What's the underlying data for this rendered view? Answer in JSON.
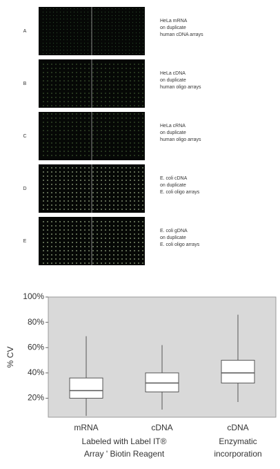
{
  "panels": [
    {
      "letter": "A",
      "lines": [
        "HeLa mRNA",
        "on duplicate",
        "human cDNA arrays"
      ]
    },
    {
      "letter": "B",
      "lines": [
        "HeLa cDNA",
        "on duplicate",
        "human oligo arrays"
      ]
    },
    {
      "letter": "C",
      "lines": [
        "HeLa cRNA",
        "on duplicate",
        "human oligo arrays"
      ]
    },
    {
      "letter": "D",
      "lines": [
        "E. coli cDNA",
        "on duplicate",
        "E. coli oligo arrays"
      ]
    },
    {
      "letter": "E",
      "lines": [
        "E. coli gDNA",
        "on duplicate",
        "E. coli oligo arrays"
      ]
    }
  ],
  "chart_data": {
    "type": "box",
    "y_label": "% CV",
    "categories": [
      "mRNA",
      "cDNA",
      "cDNA"
    ],
    "groups": [
      {
        "lines": [
          "Labeled with Label IT®",
          "Array ' Biotin Reagent"
        ]
      },
      {
        "lines": [
          "Enzymatic",
          "incorporation"
        ]
      }
    ],
    "min": [
      6,
      11,
      17
    ],
    "q1": [
      20,
      25,
      32
    ],
    "median": [
      26,
      32,
      40
    ],
    "q3": [
      36,
      40,
      50
    ],
    "max": [
      69,
      62,
      86
    ],
    "ylim": [
      5,
      100
    ],
    "yticks": [
      {
        "value": 20,
        "label": "20%"
      },
      {
        "value": 40,
        "label": "40%"
      },
      {
        "value": 60,
        "label": "60%"
      },
      {
        "value": 80,
        "label": "80%"
      },
      {
        "value": 100,
        "label": "100%"
      }
    ],
    "plot_background": "#d9d9d9",
    "box_color": "#ffffff"
  }
}
